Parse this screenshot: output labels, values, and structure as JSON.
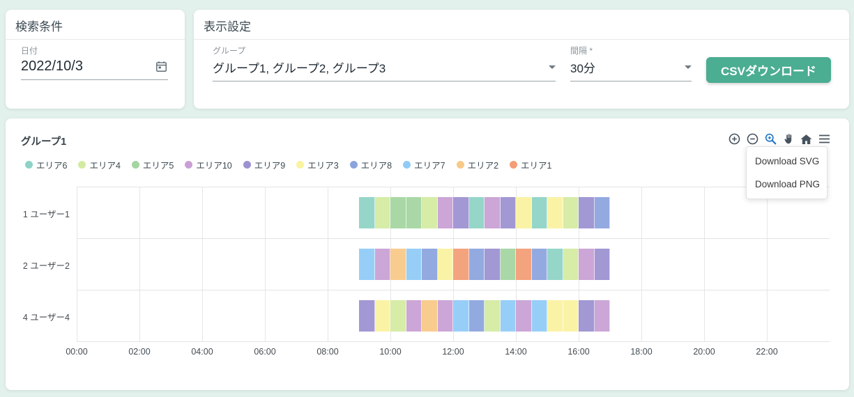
{
  "app": {
    "background": "#e3f1ec",
    "accent": "#4bad92"
  },
  "search_panel": {
    "title": "検索条件",
    "date": {
      "label": "日付",
      "value": "2022/10/3",
      "icon": "calendar-icon"
    }
  },
  "display_panel": {
    "title": "表示設定",
    "group": {
      "label": "グループ",
      "value": "グループ1, グループ2, グループ3"
    },
    "interval": {
      "label": "間隔 *",
      "value": "30分"
    },
    "csv_button_label": "CSVダウンロード",
    "csv_button_color": "#4bad92"
  },
  "chart_panel": {
    "toolbar_icons": [
      "zoom-in-icon",
      "zoom-out-icon",
      "box-zoom-icon",
      "pan-icon",
      "home-icon",
      "menu-icon"
    ],
    "active_tool": "box-zoom-icon",
    "active_tool_color": "#2678c8",
    "icon_color": "#47535f",
    "menu_items": [
      "Download SVG",
      "Download PNG"
    ]
  },
  "chart_data": {
    "type": "bar",
    "subtype": "horizontal-stacked-timeline",
    "title": "グループ1",
    "x_ticks": [
      "00:00",
      "02:00",
      "04:00",
      "06:00",
      "08:00",
      "10:00",
      "12:00",
      "14:00",
      "16:00",
      "18:00",
      "20:00",
      "22:00"
    ],
    "x_range_hours": [
      0,
      24
    ],
    "slot_minutes": 30,
    "grid": true,
    "legend_position": "top",
    "legend": [
      {
        "name": "エリア6",
        "color": "#8ed3c5"
      },
      {
        "name": "エリア4",
        "color": "#d3eba1"
      },
      {
        "name": "エリア5",
        "color": "#a3d6a0"
      },
      {
        "name": "エリア10",
        "color": "#c9a0d5"
      },
      {
        "name": "エリア9",
        "color": "#9c91d1"
      },
      {
        "name": "エリア3",
        "color": "#faf3a0"
      },
      {
        "name": "エリア8",
        "color": "#8ba4de"
      },
      {
        "name": "エリア7",
        "color": "#90cbf8"
      },
      {
        "name": "エリア2",
        "color": "#f8c987"
      },
      {
        "name": "エリア1",
        "color": "#f49d76"
      }
    ],
    "rows": [
      {
        "label": "1 ユーザー1",
        "start": "09:00",
        "end": "17:00",
        "slots": [
          "エリア6",
          "エリア4",
          "エリア5",
          "エリア5",
          "エリア4",
          "エリア10",
          "エリア9",
          "エリア6",
          "エリア10",
          "エリア9",
          "エリア3",
          "エリア6",
          "エリア3",
          "エリア4",
          "エリア9",
          "エリア8"
        ]
      },
      {
        "label": "2 ユーザー2",
        "start": "09:00",
        "end": "17:00",
        "slots": [
          "エリア7",
          "エリア10",
          "エリア2",
          "エリア7",
          "エリア8",
          "エリア3",
          "エリア1",
          "エリア8",
          "エリア9",
          "エリア5",
          "エリア1",
          "エリア8",
          "エリア6",
          "エリア4",
          "エリア10",
          "エリア9"
        ]
      },
      {
        "label": "4 ユーザー4",
        "start": "09:00",
        "end": "17:00",
        "slots": [
          "エリア9",
          "エリア3",
          "エリア4",
          "エリア10",
          "エリア2",
          "エリア10",
          "エリア7",
          "エリア8",
          "エリア4",
          "エリア7",
          "エリア10",
          "エリア7",
          "エリア3",
          "エリア3",
          "エリア9",
          "エリア10"
        ]
      }
    ]
  }
}
